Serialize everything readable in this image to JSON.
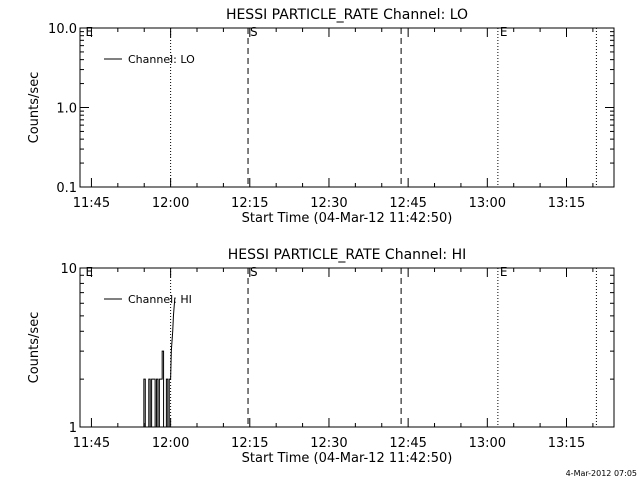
{
  "chart_data": [
    {
      "type": "line",
      "title": "HESSI PARTICLE_RATE Channel: LO",
      "xlabel": "Start Time (04-Mar-12 11:42:50)",
      "ylabel": "Counts/sec",
      "y_scale": "log",
      "ylim": [
        0.1,
        10.0
      ],
      "y_ticks": [
        {
          "value": 0.1,
          "label": "0.1"
        },
        {
          "value": 1.0,
          "label": "1.0"
        },
        {
          "value": 10.0,
          "label": "10.0"
        }
      ],
      "xlim": [
        "11:42:50",
        "13:24:00"
      ],
      "x_ticks": [
        "11:45",
        "12:00",
        "12:15",
        "12:30",
        "12:45",
        "13:00",
        "13:15"
      ],
      "legend": {
        "placement": "top-left",
        "entries": [
          "Channel: LO"
        ]
      },
      "series": [
        {
          "name": "Channel: LO",
          "points": []
        }
      ],
      "markers": [
        {
          "time": "11:43:30",
          "style": "none",
          "label": "E"
        },
        {
          "time": "12:00:00",
          "style": "dotted",
          "label": ""
        },
        {
          "time": "12:14:40",
          "style": "dashed",
          "label": "S"
        },
        {
          "time": "12:43:40",
          "style": "dashed",
          "label": ""
        },
        {
          "time": "13:02:00",
          "style": "dotted",
          "label": "E"
        },
        {
          "time": "13:20:40",
          "style": "dotted",
          "label": ""
        }
      ]
    },
    {
      "type": "line",
      "title": "HESSI PARTICLE_RATE Channel: HI",
      "xlabel": "Start Time (04-Mar-12 11:42:50)",
      "ylabel": "Counts/sec",
      "y_scale": "log",
      "ylim": [
        1,
        10
      ],
      "y_ticks": [
        {
          "value": 1,
          "label": "1"
        },
        {
          "value": 10,
          "label": "10"
        }
      ],
      "xlim": [
        "11:42:50",
        "13:24:00"
      ],
      "x_ticks": [
        "11:45",
        "12:00",
        "12:15",
        "12:30",
        "12:45",
        "13:00",
        "13:15"
      ],
      "legend": {
        "placement": "top-left",
        "entries": [
          "Channel: HI"
        ]
      },
      "series": [
        {
          "name": "Channel: HI",
          "points": [
            {
              "t": "11:54:56",
              "y": 1.0
            },
            {
              "t": "11:54:56",
              "y": 2.0
            },
            {
              "t": "11:55:12",
              "y": 2.0
            },
            {
              "t": "11:55:12",
              "y": 1.0
            },
            {
              "t": "11:55:52",
              "y": 1.0
            },
            {
              "t": "11:55:52",
              "y": 2.0
            },
            {
              "t": "11:56:08",
              "y": 2.0
            },
            {
              "t": "11:56:08",
              "y": 1.0
            },
            {
              "t": "11:56:24",
              "y": 1.0
            },
            {
              "t": "11:56:24",
              "y": 2.0
            },
            {
              "t": "11:57:04",
              "y": 2.0
            },
            {
              "t": "11:57:04",
              "y": 1.0
            },
            {
              "t": "11:57:20",
              "y": 1.0
            },
            {
              "t": "11:57:20",
              "y": 2.0
            },
            {
              "t": "11:57:36",
              "y": 2.0
            },
            {
              "t": "11:57:36",
              "y": 1.0
            },
            {
              "t": "11:57:52",
              "y": 1.0
            },
            {
              "t": "11:57:52",
              "y": 2.0
            },
            {
              "t": "11:58:24",
              "y": 2.0
            },
            {
              "t": "11:58:24",
              "y": 3.0
            },
            {
              "t": "11:58:40",
              "y": 3.0
            },
            {
              "t": "11:58:40",
              "y": 1.0
            },
            {
              "t": "11:59:12",
              "y": 1.0
            },
            {
              "t": "11:59:12",
              "y": 2.0
            },
            {
              "t": "11:59:28",
              "y": 2.0
            },
            {
              "t": "11:59:28",
              "y": 1.0
            },
            {
              "t": "11:59:44",
              "y": 1.0
            },
            {
              "t": "11:59:44",
              "y": 2.0
            },
            {
              "t": "12:00:00",
              "y": 2.0
            },
            {
              "t": "12:00:08",
              "y": 3.0
            },
            {
              "t": "12:00:24",
              "y": 4.0
            },
            {
              "t": "12:00:32",
              "y": 5.0
            },
            {
              "t": "12:00:48",
              "y": 6.5
            }
          ]
        }
      ],
      "markers": [
        {
          "time": "11:43:30",
          "style": "none",
          "label": "E"
        },
        {
          "time": "12:00:00",
          "style": "dotted",
          "label": ""
        },
        {
          "time": "12:14:40",
          "style": "dashed",
          "label": "S"
        },
        {
          "time": "12:43:40",
          "style": "dashed",
          "label": ""
        },
        {
          "time": "13:02:00",
          "style": "dotted",
          "label": "E"
        },
        {
          "time": "13:20:40",
          "style": "dotted",
          "label": ""
        }
      ]
    }
  ],
  "footer": {
    "timestamp": "4-Mar-2012 07:05"
  }
}
